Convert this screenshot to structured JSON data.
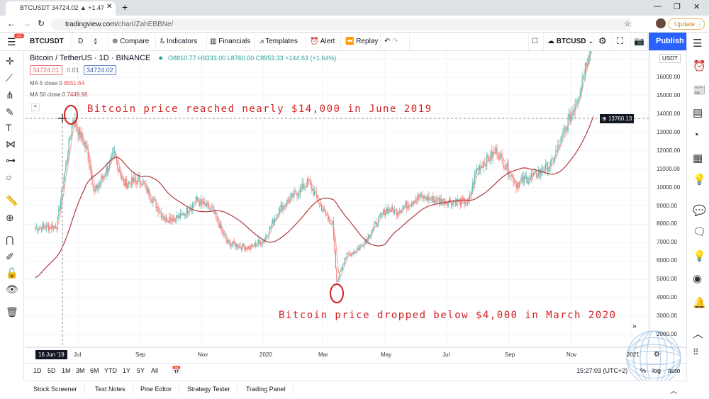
{
  "browser": {
    "tab_title": "BTCUSDT 34724.02 ▲ +1.47% BT",
    "url_host": "tradingview.com",
    "url_path": "/chart/ZahEBBNe/",
    "update_label": "Update"
  },
  "toolbar": {
    "menu_badge": "12",
    "symbol": "BTCUSDT",
    "interval": "D",
    "compare": "Compare",
    "indicators": "Indicators",
    "financials": "Financials",
    "templates": "Templates",
    "alert": "Alert",
    "replay": "Replay",
    "compare_symbol": "BTCUSD",
    "publish": "Publish"
  },
  "legend": {
    "title": "Bitcoin / TetherUS · 1D · BINANCE",
    "ohlc": "O8810.77 H9333.00 L8760.00 C8953.33 +144.63 (+1.64%)",
    "bid": "34724.01",
    "spread": "0.01",
    "ask": "34724.02",
    "ma5_label": "MA 5 close 0",
    "ma5_value": "8551.64",
    "ma50_label": "MA 50 close 0",
    "ma50_value": "7449.96"
  },
  "colors": {
    "up": "#26a69a",
    "down": "#ef5350",
    "ma50": "#b2393d",
    "ma5": "#f4a29a",
    "annotation": "#d21f1f",
    "accent": "#2962ff"
  },
  "axis": {
    "currency": "USDT",
    "crosshair_price": "13760.13",
    "crosshair_date": "16 Jun '19",
    "y_ticks": [
      "16000.00",
      "15000.00",
      "14000.00",
      "13000.00",
      "12000.00",
      "11000.00",
      "10000.00",
      "9000.00",
      "8000.00",
      "7000.00",
      "6000.00",
      "5000.00",
      "4000.00",
      "3000.00",
      "2000.00"
    ],
    "x_ticks": [
      "Jul",
      "Sep",
      "Nov",
      "2020",
      "Mar",
      "May",
      "Jul",
      "Sep",
      "Nov",
      "2021"
    ]
  },
  "annotations": {
    "top": "Bitcoin price reached nearly $14,000 in June 2019",
    "bottom": "Bitcoin price dropped below $4,000 in March 2020"
  },
  "range": {
    "buttons": [
      "1D",
      "5D",
      "1M",
      "3M",
      "6M",
      "YTD",
      "1Y",
      "5Y",
      "All"
    ],
    "time": "15:27:03 (UTC+2)",
    "pct": "%",
    "log": "log",
    "auto": "auto"
  },
  "bottom_tabs": [
    "Stock Screener",
    "Text Notes",
    "Pine Editor",
    "Strategy Tester",
    "Trading Panel"
  ],
  "chart_data": {
    "type": "candlestick",
    "x_axis": "date",
    "y_axis": "price (USDT)",
    "ylim": [
      1000,
      17400
    ],
    "grid": true,
    "close_path": [
      [
        "2019-05-20",
        7800
      ],
      [
        "2019-06-10",
        7900
      ],
      [
        "2019-06-26",
        13760
      ],
      [
        "2019-07-10",
        12000
      ],
      [
        "2019-07-17",
        9700
      ],
      [
        "2019-08-06",
        11800
      ],
      [
        "2019-08-15",
        10200
      ],
      [
        "2019-09-01",
        10400
      ],
      [
        "2019-09-24",
        8300
      ],
      [
        "2019-10-10",
        8400
      ],
      [
        "2019-10-26",
        9300
      ],
      [
        "2019-11-10",
        8800
      ],
      [
        "2019-11-25",
        7000
      ],
      [
        "2019-12-17",
        6700
      ],
      [
        "2020-01-01",
        7200
      ],
      [
        "2020-01-15",
        8800
      ],
      [
        "2020-02-13",
        10300
      ],
      [
        "2020-02-28",
        8700
      ],
      [
        "2020-03-08",
        8000
      ],
      [
        "2020-03-12",
        4800
      ],
      [
        "2020-03-20",
        6200
      ],
      [
        "2020-04-05",
        6800
      ],
      [
        "2020-04-29",
        8800
      ],
      [
        "2020-05-10",
        8700
      ],
      [
        "2020-06-01",
        9500
      ],
      [
        "2020-06-20",
        9300
      ],
      [
        "2020-07-20",
        9200
      ],
      [
        "2020-07-28",
        11000
      ],
      [
        "2020-08-17",
        12000
      ],
      [
        "2020-09-05",
        10200
      ],
      [
        "2020-09-25",
        10700
      ],
      [
        "2020-10-10",
        11300
      ],
      [
        "2020-10-21",
        12800
      ],
      [
        "2020-11-05",
        15000
      ],
      [
        "2020-11-20",
        18500
      ]
    ]
  }
}
